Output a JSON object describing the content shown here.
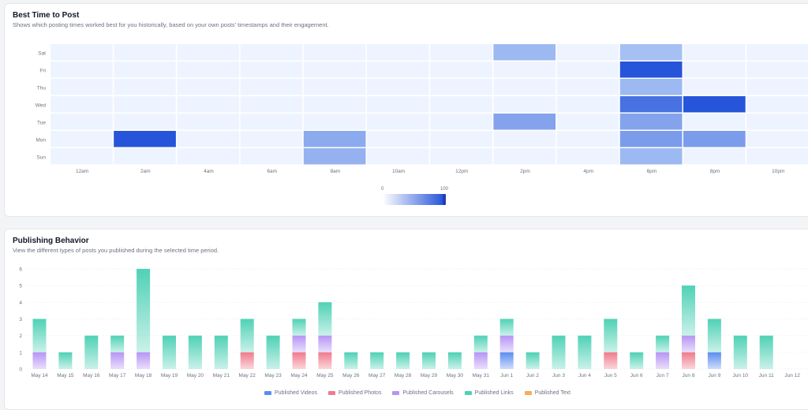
{
  "best_time": {
    "title": "Best Time to Post",
    "subtitle": "Shows which posting times worked best for you historically, based on your own posts' timestamps and their engagement.",
    "scale_min": "0",
    "scale_max": "100"
  },
  "publishing": {
    "title": "Publishing Behavior",
    "subtitle": "View the different types of posts you published during the selected time period."
  },
  "colors": {
    "heat_base": "#eef4ff",
    "heat_max": "#1d4ed8",
    "videos": "#5b8def",
    "photos": "#f07a8c",
    "carousels": "#b794f4",
    "links": "#4fd1b5",
    "text": "#f6ad55"
  },
  "chart_data": [
    {
      "type": "heatmap",
      "title": "Best Time to Post",
      "rows": [
        "Sat",
        "Fri",
        "Thu",
        "Wed",
        "Tue",
        "Mon",
        "Sun"
      ],
      "columns": [
        "12am",
        "2am",
        "4am",
        "6am",
        "8am",
        "10am",
        "12pm",
        "2pm",
        "4pm",
        "6pm",
        "8pm",
        "10pm"
      ],
      "values": [
        [
          0,
          0,
          0,
          0,
          0,
          0,
          0,
          25,
          0,
          20,
          0,
          0
        ],
        [
          0,
          0,
          0,
          0,
          0,
          0,
          0,
          0,
          0,
          95,
          0,
          0
        ],
        [
          0,
          0,
          0,
          0,
          0,
          0,
          0,
          0,
          0,
          25,
          0,
          0
        ],
        [
          0,
          0,
          0,
          0,
          0,
          0,
          0,
          0,
          0,
          75,
          95,
          0
        ],
        [
          0,
          0,
          0,
          0,
          0,
          0,
          0,
          40,
          0,
          40,
          0,
          0
        ],
        [
          0,
          95,
          0,
          0,
          35,
          0,
          0,
          0,
          0,
          45,
          45,
          0
        ],
        [
          0,
          0,
          0,
          0,
          30,
          0,
          0,
          0,
          0,
          25,
          0,
          0
        ]
      ],
      "scale": [
        0,
        100
      ]
    },
    {
      "type": "bar",
      "stacked": true,
      "title": "Publishing Behavior",
      "categories": [
        "May 14",
        "May 15",
        "May 16",
        "May 17",
        "May 18",
        "May 19",
        "May 20",
        "May 21",
        "May 22",
        "May 23",
        "May 24",
        "May 25",
        "May 26",
        "May 27",
        "May 28",
        "May 29",
        "May 30",
        "May 31",
        "Jun 1",
        "Jun 2",
        "Jun 3",
        "Jun 4",
        "Jun 5",
        "Jun 6",
        "Jun 7",
        "Jun 8",
        "Jun 9",
        "Jun 10",
        "Jun 11",
        "Jun 12"
      ],
      "ylim": [
        0,
        6
      ],
      "yticks": [
        0,
        1,
        2,
        3,
        4,
        5,
        6
      ],
      "series": [
        {
          "name": "Published Videos",
          "values": [
            0,
            0,
            0,
            0,
            0,
            0,
            0,
            0,
            0,
            0,
            0,
            0,
            0,
            0,
            0,
            0,
            0,
            0,
            1,
            0,
            0,
            0,
            0,
            0,
            0,
            0,
            1,
            0,
            0,
            0
          ]
        },
        {
          "name": "Published Photos",
          "values": [
            0,
            0,
            0,
            0,
            0,
            0,
            0,
            0,
            1,
            0,
            1,
            1,
            0,
            0,
            0,
            0,
            0,
            0,
            0,
            0,
            0,
            0,
            1,
            0,
            0,
            1,
            0,
            0,
            0,
            0
          ]
        },
        {
          "name": "Published Carousels",
          "values": [
            1,
            0,
            0,
            1,
            1,
            0,
            0,
            0,
            0,
            0,
            1,
            1,
            0,
            0,
            0,
            0,
            0,
            1,
            1,
            0,
            0,
            0,
            0,
            0,
            1,
            1,
            0,
            0,
            0,
            0
          ]
        },
        {
          "name": "Published Links",
          "values": [
            2,
            1,
            2,
            1,
            5,
            2,
            2,
            2,
            2,
            2,
            1,
            2,
            1,
            1,
            1,
            1,
            1,
            1,
            1,
            1,
            2,
            2,
            2,
            1,
            1,
            3,
            2,
            2,
            2,
            0
          ]
        },
        {
          "name": "Published Text",
          "values": [
            0,
            0,
            0,
            0,
            0,
            0,
            0,
            0,
            0,
            0,
            0,
            0,
            0,
            0,
            0,
            0,
            0,
            0,
            0,
            0,
            0,
            0,
            0,
            0,
            0,
            0,
            0,
            0,
            0,
            0
          ]
        }
      ],
      "legend": "bottom"
    }
  ]
}
